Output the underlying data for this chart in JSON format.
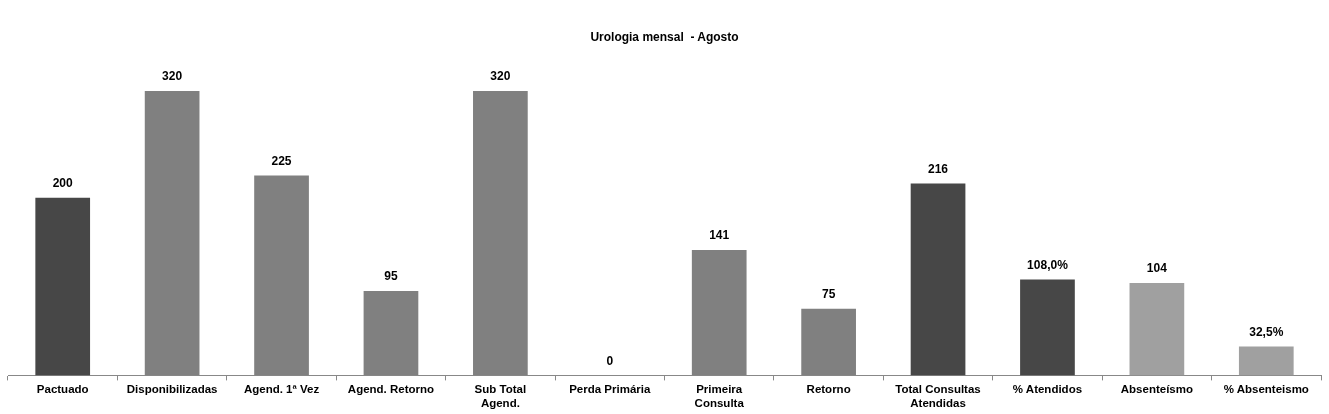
{
  "chart_data": {
    "type": "bar",
    "title": "Urologia mensal  - Agosto",
    "categories": [
      "Pactuado",
      "Disponibilizadas",
      "Agend. 1ª Vez",
      "Agend. Retorno",
      "Sub Total\nAgend.",
      "Perda Primária",
      "Primeira\nConsulta",
      "Retorno",
      "Total Consultas\nAtendidas",
      "% Atendidos",
      "Absenteísmo",
      "% Absenteismo"
    ],
    "series": [
      {
        "colors": [
          "#474747",
          "#808080",
          "#808080",
          "#808080",
          "#808080",
          "#808080",
          "#808080",
          "#808080",
          "#474747",
          "#474747",
          "#a0a0a0",
          "#a0a0a0"
        ],
        "values": [
          200,
          320,
          225,
          95,
          320,
          0,
          141,
          75,
          216,
          108.0,
          104,
          32.5
        ],
        "value_labels": [
          "200",
          "320",
          "225",
          "95",
          "320",
          "0",
          "141",
          "75",
          "216",
          "108,0%",
          "104",
          "32,5%"
        ]
      }
    ],
    "grid": false,
    "legend": false,
    "tick_labels": "x"
  }
}
